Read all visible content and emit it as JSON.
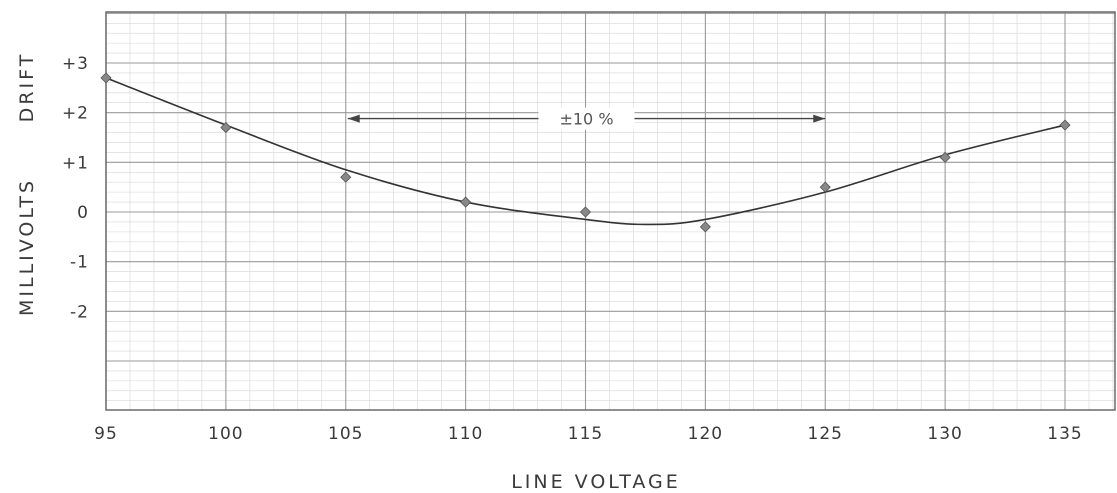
{
  "chart_data": {
    "type": "line",
    "title": "",
    "xlabel": "LINE VOLTAGE",
    "ylabel": "MILLIVOLTS DRIFT",
    "ylabel_parts": [
      "MILLIVOLTS",
      "DRIFT"
    ],
    "x_ticks": [
      "95",
      "100",
      "105",
      "110",
      "115",
      "120",
      "125",
      "130",
      "135"
    ],
    "x_tick_values": [
      95,
      100,
      105,
      110,
      115,
      120,
      125,
      130,
      135
    ],
    "y_ticks": [
      "+3",
      "+2",
      "+1",
      "0",
      "-1",
      "-2"
    ],
    "y_tick_values": [
      3,
      2,
      1,
      0,
      -1,
      -2
    ],
    "xlim": [
      95,
      137
    ],
    "ylim": [
      -4,
      4.3
    ],
    "grid": true,
    "series": [
      {
        "points": [
          {
            "x": 95,
            "y": 2.7
          },
          {
            "x": 100,
            "y": 1.7
          },
          {
            "x": 105,
            "y": 0.7
          },
          {
            "x": 110,
            "y": 0.2
          },
          {
            "x": 115,
            "y": 0.0
          },
          {
            "x": 120,
            "y": -0.3
          },
          {
            "x": 125,
            "y": 0.5
          },
          {
            "x": 130,
            "y": 1.1
          },
          {
            "x": 135,
            "y": 1.75
          }
        ]
      }
    ],
    "curve": [
      {
        "x": 95,
        "y": 2.7
      },
      {
        "x": 100,
        "y": 1.75
      },
      {
        "x": 105,
        "y": 0.85
      },
      {
        "x": 110,
        "y": 0.2
      },
      {
        "x": 115,
        "y": -0.15
      },
      {
        "x": 117.5,
        "y": -0.25
      },
      {
        "x": 120,
        "y": -0.15
      },
      {
        "x": 125,
        "y": 0.4
      },
      {
        "x": 130,
        "y": 1.15
      },
      {
        "x": 135,
        "y": 1.75
      }
    ],
    "annotation": {
      "text": "±10 %",
      "x_from": 105,
      "x_to": 125,
      "y": 1.8
    },
    "colors": {
      "grid_minor": "#d6d6d6",
      "grid_major": "#9a9a9a",
      "line": "#333333",
      "marker": "#888888"
    }
  }
}
